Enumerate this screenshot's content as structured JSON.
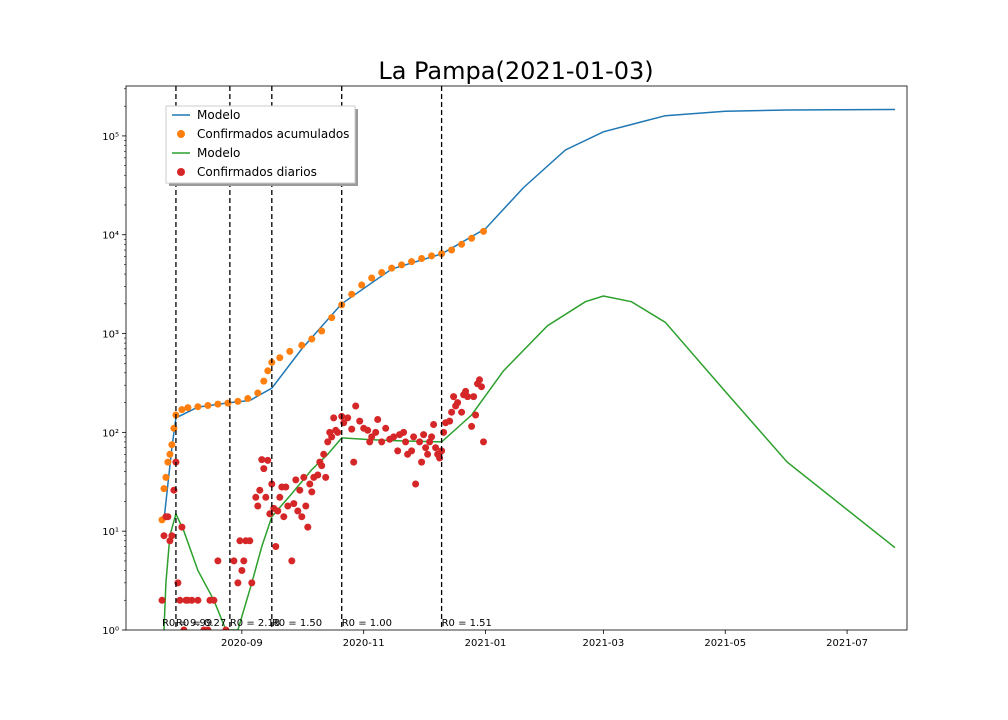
{
  "chart_data": {
    "type": "scatter",
    "title": "La Pampa(2021-01-03)",
    "xlabel": "",
    "ylabel": "",
    "yscale": "log",
    "xlim": [
      "2020-07-05",
      "2021-07-31"
    ],
    "ylim": [
      1,
      320000
    ],
    "x_ticks": [
      "2020-09-01",
      "2020-11-01",
      "2021-01-01",
      "2021-03-01",
      "2021-05-01",
      "2021-07-01"
    ],
    "x_tick_labels": [
      "2020-09",
      "2020-11",
      "2021-01",
      "2021-03",
      "2021-05",
      "2021-07"
    ],
    "y_tick_labels": [
      "10⁰",
      "10¹",
      "10²",
      "10³",
      "10⁴",
      "10⁵"
    ],
    "legend": {
      "position": "upper-left",
      "entries": [
        {
          "label": "Modelo",
          "marker": "line",
          "color": "#1f77b4"
        },
        {
          "label": "Confirmados acumulados",
          "marker": "dot",
          "color": "#ff7f0e"
        },
        {
          "label": "Modelo",
          "marker": "line",
          "color": "#2ca02c"
        },
        {
          "label": "Confirmados diarios",
          "marker": "dot",
          "color": "#d62728"
        }
      ]
    },
    "vertical_lines": [
      {
        "date": "2020-07-30",
        "label": "R0 = 9.99"
      },
      {
        "date": "2020-08-26",
        "label": "R0 = 0.27"
      },
      {
        "date": "2020-09-16",
        "label": "R0 = 2.18"
      },
      {
        "date": "2020-10-21",
        "label": "R0 = 1.50"
      },
      {
        "date": "2020-12-10",
        "label": "R0 = 1.00"
      }
    ],
    "vertical_line_end_label": "R0 = 1.51",
    "series": [
      {
        "name": "Modelo",
        "kind": "line",
        "color": "#1f77b4",
        "points": [
          [
            "2020-07-24",
            13
          ],
          [
            "2020-07-26",
            30
          ],
          [
            "2020-07-28",
            70
          ],
          [
            "2020-07-30",
            140
          ],
          [
            "2020-08-10",
            180
          ],
          [
            "2020-08-26",
            200
          ],
          [
            "2020-09-05",
            210
          ],
          [
            "2020-09-16",
            280
          ],
          [
            "2020-10-01",
            700
          ],
          [
            "2020-10-21",
            2000
          ],
          [
            "2020-11-15",
            4500
          ],
          [
            "2020-12-10",
            6400
          ],
          [
            "2021-01-01",
            11500
          ],
          [
            "2021-01-20",
            30000
          ],
          [
            "2021-02-10",
            72000
          ],
          [
            "2021-03-01",
            110000
          ],
          [
            "2021-04-01",
            160000
          ],
          [
            "2021-05-01",
            178000
          ],
          [
            "2021-06-01",
            183000
          ],
          [
            "2021-07-25",
            185000
          ]
        ]
      },
      {
        "name": "Confirmados acumulados",
        "kind": "scatter",
        "color": "#ff7f0e",
        "points": [
          [
            "2020-07-23",
            13
          ],
          [
            "2020-07-24",
            27
          ],
          [
            "2020-07-25",
            35
          ],
          [
            "2020-07-26",
            50
          ],
          [
            "2020-07-27",
            60
          ],
          [
            "2020-07-28",
            75
          ],
          [
            "2020-07-29",
            110
          ],
          [
            "2020-07-30",
            150
          ],
          [
            "2020-08-02",
            170
          ],
          [
            "2020-08-05",
            178
          ],
          [
            "2020-08-10",
            182
          ],
          [
            "2020-08-15",
            187
          ],
          [
            "2020-08-20",
            193
          ],
          [
            "2020-08-25",
            198
          ],
          [
            "2020-08-30",
            206
          ],
          [
            "2020-09-04",
            220
          ],
          [
            "2020-09-09",
            250
          ],
          [
            "2020-09-12",
            330
          ],
          [
            "2020-09-14",
            420
          ],
          [
            "2020-09-16",
            510
          ],
          [
            "2020-09-20",
            570
          ],
          [
            "2020-09-25",
            660
          ],
          [
            "2020-10-01",
            760
          ],
          [
            "2020-10-06",
            880
          ],
          [
            "2020-10-11",
            1060
          ],
          [
            "2020-10-16",
            1450
          ],
          [
            "2020-10-21",
            1950
          ],
          [
            "2020-10-26",
            2500
          ],
          [
            "2020-10-31",
            3100
          ],
          [
            "2020-11-05",
            3650
          ],
          [
            "2020-11-10",
            4150
          ],
          [
            "2020-11-15",
            4600
          ],
          [
            "2020-11-20",
            4950
          ],
          [
            "2020-11-25",
            5350
          ],
          [
            "2020-11-30",
            5750
          ],
          [
            "2020-12-05",
            6100
          ],
          [
            "2020-12-10",
            6450
          ],
          [
            "2020-12-15",
            7000
          ],
          [
            "2020-12-20",
            8000
          ],
          [
            "2020-12-25",
            9200
          ],
          [
            "2020-12-31",
            10800
          ]
        ]
      },
      {
        "name": "Modelo",
        "kind": "line",
        "color": "#2ca02c",
        "points": [
          [
            "2020-07-24",
            1
          ],
          [
            "2020-07-25",
            3
          ],
          [
            "2020-07-27",
            9
          ],
          [
            "2020-07-30",
            15
          ],
          [
            "2020-08-03",
            10
          ],
          [
            "2020-08-10",
            4
          ],
          [
            "2020-08-18",
            2
          ],
          [
            "2020-08-24",
            1
          ],
          [
            "2020-08-30",
            1
          ],
          [
            "2020-09-06",
            3
          ],
          [
            "2020-09-11",
            7
          ],
          [
            "2020-09-16",
            14
          ],
          [
            "2020-09-26",
            24
          ],
          [
            "2020-10-06",
            42
          ],
          [
            "2020-10-14",
            60
          ],
          [
            "2020-10-21",
            88
          ],
          [
            "2020-11-05",
            84
          ],
          [
            "2020-11-20",
            82
          ],
          [
            "2020-12-10",
            80
          ],
          [
            "2020-12-25",
            150
          ],
          [
            "2021-01-10",
            420
          ],
          [
            "2021-02-01",
            1200
          ],
          [
            "2021-02-20",
            2100
          ],
          [
            "2021-03-01",
            2400
          ],
          [
            "2021-03-15",
            2100
          ],
          [
            "2021-04-01",
            1300
          ],
          [
            "2021-05-01",
            260
          ],
          [
            "2021-06-01",
            50
          ],
          [
            "2021-07-25",
            6.8
          ]
        ]
      },
      {
        "name": "Confirmados diarios",
        "kind": "scatter",
        "color": "#d62728",
        "points": [
          [
            "2020-07-23",
            2
          ],
          [
            "2020-07-24",
            9
          ],
          [
            "2020-07-25",
            14
          ],
          [
            "2020-07-26",
            14
          ],
          [
            "2020-07-27",
            8
          ],
          [
            "2020-07-28",
            9
          ],
          [
            "2020-07-29",
            26
          ],
          [
            "2020-07-30",
            50
          ],
          [
            "2020-07-31",
            3
          ],
          [
            "2020-08-01",
            2
          ],
          [
            "2020-08-02",
            11
          ],
          [
            "2020-08-03",
            1
          ],
          [
            "2020-08-04",
            2
          ],
          [
            "2020-08-05",
            2
          ],
          [
            "2020-08-07",
            2
          ],
          [
            "2020-08-10",
            2
          ],
          [
            "2020-08-13",
            1
          ],
          [
            "2020-08-15",
            1
          ],
          [
            "2020-08-16",
            2
          ],
          [
            "2020-08-18",
            2
          ],
          [
            "2020-08-20",
            5
          ],
          [
            "2020-08-24",
            1
          ],
          [
            "2020-08-28",
            5
          ],
          [
            "2020-08-30",
            3
          ],
          [
            "2020-08-31",
            8
          ],
          [
            "2020-09-01",
            4
          ],
          [
            "2020-09-02",
            5
          ],
          [
            "2020-09-03",
            8
          ],
          [
            "2020-09-05",
            8
          ],
          [
            "2020-09-06",
            3
          ],
          [
            "2020-09-08",
            22
          ],
          [
            "2020-09-09",
            18
          ],
          [
            "2020-09-10",
            26
          ],
          [
            "2020-09-11",
            53
          ],
          [
            "2020-09-12",
            43
          ],
          [
            "2020-09-13",
            22
          ],
          [
            "2020-09-14",
            52
          ],
          [
            "2020-09-15",
            15
          ],
          [
            "2020-09-16",
            30
          ],
          [
            "2020-09-17",
            17
          ],
          [
            "2020-09-18",
            7
          ],
          [
            "2020-09-19",
            16
          ],
          [
            "2020-09-20",
            22
          ],
          [
            "2020-09-21",
            28
          ],
          [
            "2020-09-22",
            14
          ],
          [
            "2020-09-23",
            28
          ],
          [
            "2020-09-24",
            18
          ],
          [
            "2020-09-26",
            5
          ],
          [
            "2020-09-27",
            19
          ],
          [
            "2020-09-28",
            33
          ],
          [
            "2020-09-29",
            16
          ],
          [
            "2020-09-30",
            26
          ],
          [
            "2020-10-01",
            14
          ],
          [
            "2020-10-02",
            35
          ],
          [
            "2020-10-03",
            18
          ],
          [
            "2020-10-04",
            11
          ],
          [
            "2020-10-05",
            30
          ],
          [
            "2020-10-06",
            25
          ],
          [
            "2020-10-07",
            35
          ],
          [
            "2020-10-09",
            37
          ],
          [
            "2020-10-10",
            50
          ],
          [
            "2020-10-11",
            46
          ],
          [
            "2020-10-12",
            60
          ],
          [
            "2020-10-13",
            35
          ],
          [
            "2020-10-14",
            80
          ],
          [
            "2020-10-15",
            100
          ],
          [
            "2020-10-16",
            90
          ],
          [
            "2020-10-17",
            140
          ],
          [
            "2020-10-18",
            105
          ],
          [
            "2020-10-19",
            100
          ],
          [
            "2020-10-21",
            145
          ],
          [
            "2020-10-22",
            125
          ],
          [
            "2020-10-24",
            140
          ],
          [
            "2020-10-26",
            108
          ],
          [
            "2020-10-27",
            50
          ],
          [
            "2020-10-28",
            185
          ],
          [
            "2020-10-30",
            130
          ],
          [
            "2020-11-01",
            110
          ],
          [
            "2020-11-03",
            105
          ],
          [
            "2020-11-04",
            80
          ],
          [
            "2020-11-05",
            90
          ],
          [
            "2020-11-07",
            100
          ],
          [
            "2020-11-08",
            135
          ],
          [
            "2020-11-10",
            80
          ],
          [
            "2020-11-12",
            110
          ],
          [
            "2020-11-14",
            85
          ],
          [
            "2020-11-16",
            90
          ],
          [
            "2020-11-18",
            65
          ],
          [
            "2020-11-19",
            95
          ],
          [
            "2020-11-21",
            100
          ],
          [
            "2020-11-22",
            80
          ],
          [
            "2020-11-23",
            60
          ],
          [
            "2020-11-25",
            65
          ],
          [
            "2020-11-26",
            90
          ],
          [
            "2020-11-27",
            30
          ],
          [
            "2020-11-29",
            80
          ],
          [
            "2020-11-30",
            50
          ],
          [
            "2020-12-01",
            95
          ],
          [
            "2020-12-02",
            70
          ],
          [
            "2020-12-03",
            60
          ],
          [
            "2020-12-04",
            80
          ],
          [
            "2020-12-05",
            90
          ],
          [
            "2020-12-06",
            120
          ],
          [
            "2020-12-07",
            70
          ],
          [
            "2020-12-08",
            60
          ],
          [
            "2020-12-09",
            55
          ],
          [
            "2020-12-10",
            65
          ],
          [
            "2020-12-11",
            100
          ],
          [
            "2020-12-12",
            125
          ],
          [
            "2020-12-14",
            130
          ],
          [
            "2020-12-15",
            160
          ],
          [
            "2020-12-16",
            230
          ],
          [
            "2020-12-17",
            185
          ],
          [
            "2020-12-18",
            200
          ],
          [
            "2020-12-20",
            160
          ],
          [
            "2020-12-21",
            240
          ],
          [
            "2020-12-22",
            260
          ],
          [
            "2020-12-23",
            230
          ],
          [
            "2020-12-25",
            115
          ],
          [
            "2020-12-26",
            230
          ],
          [
            "2020-12-27",
            150
          ],
          [
            "2020-12-28",
            310
          ],
          [
            "2020-12-29",
            340
          ],
          [
            "2020-12-30",
            290
          ],
          [
            "2020-12-31",
            80
          ]
        ]
      }
    ]
  }
}
